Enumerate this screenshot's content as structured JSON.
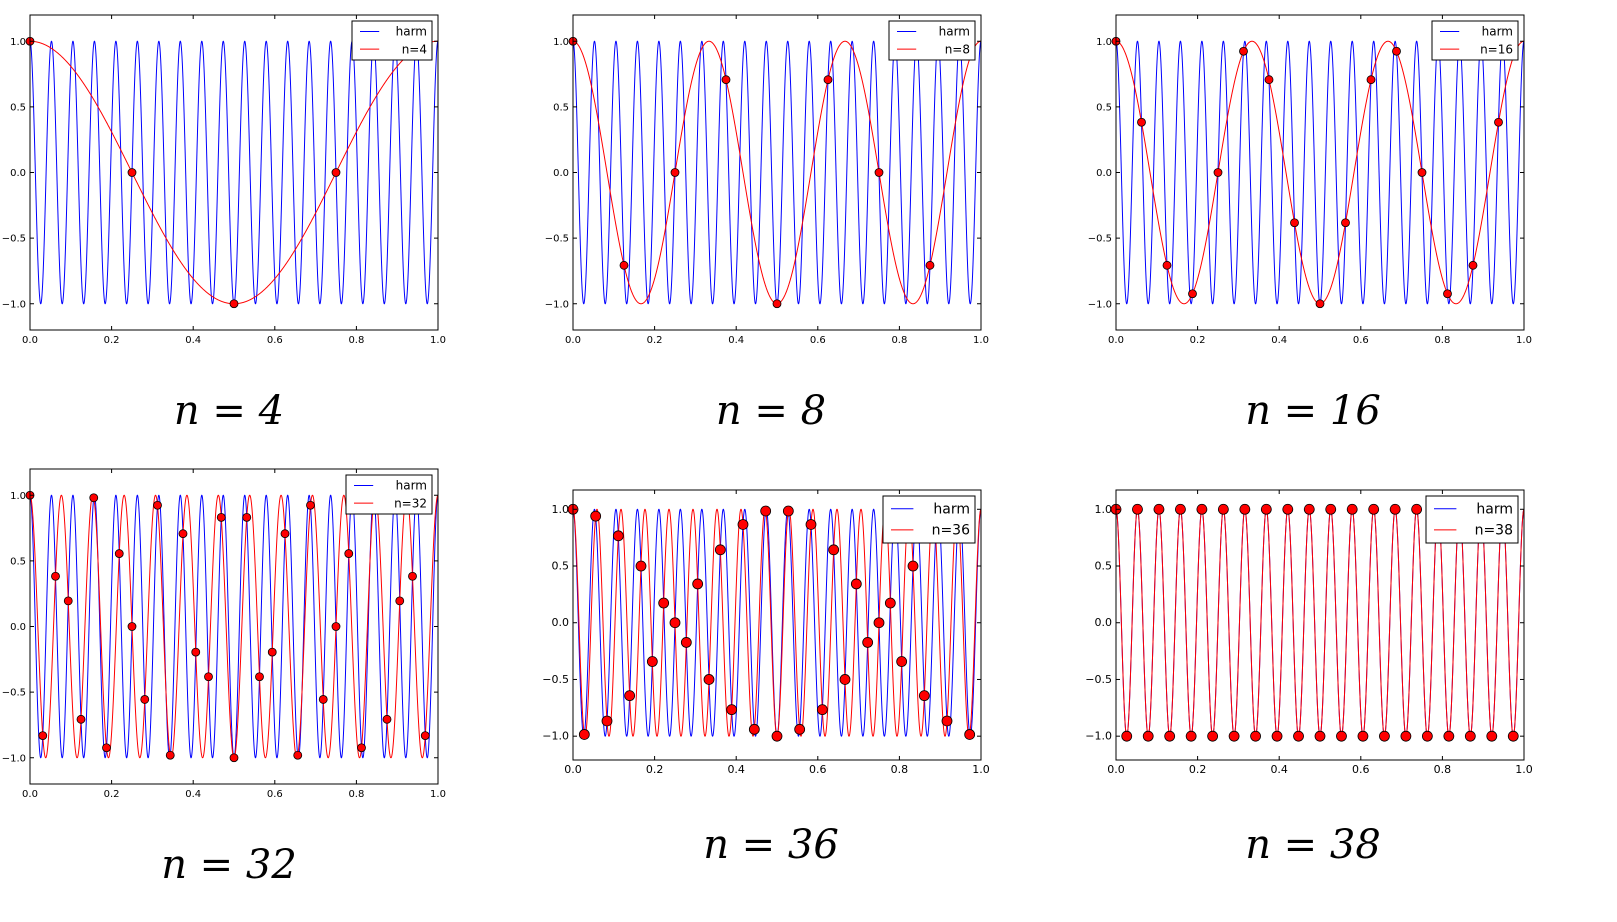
{
  "chart_data": [
    {
      "type": "line",
      "title": "n = 4",
      "xlim": [
        0,
        1
      ],
      "ylim": [
        -1.2,
        1.2
      ],
      "xticks": [
        "0.0",
        "0.2",
        "0.4",
        "0.6",
        "0.8",
        "1.0"
      ],
      "yticks": [
        "1.0",
        "0.5",
        "0.0",
        "−0.5",
        "−1.0"
      ],
      "series": [
        {
          "name": "harm",
          "function": "cos(2π·19·x)",
          "color": "#0000ff"
        },
        {
          "name": "n=4",
          "function": "cos(2π·1·x)",
          "color": "#ff0000"
        }
      ],
      "samples": {
        "n": 4,
        "x": "j/n, j=0..n-1",
        "y": "cos(2π·19·x)",
        "color": "#ff0000"
      },
      "legend": "top-right"
    },
    {
      "type": "line",
      "title": "n = 8",
      "xlim": [
        0,
        1
      ],
      "ylim": [
        -1.2,
        1.2
      ],
      "xticks": [
        "0.0",
        "0.2",
        "0.4",
        "0.6",
        "0.8",
        "1.0"
      ],
      "yticks": [
        "1.0",
        "0.5",
        "0.0",
        "−0.5",
        "−1.0"
      ],
      "series": [
        {
          "name": "harm",
          "function": "cos(2π·19·x)",
          "color": "#0000ff"
        },
        {
          "name": "n=8",
          "function": "cos(2π·3·x)",
          "color": "#ff0000"
        }
      ],
      "samples": {
        "n": 8,
        "x": "j/n, j=0..n-1",
        "y": "cos(2π·19·x)",
        "color": "#ff0000"
      },
      "legend": "top-right"
    },
    {
      "type": "line",
      "title": "n = 16",
      "xlim": [
        0,
        1
      ],
      "ylim": [
        -1.2,
        1.2
      ],
      "xticks": [
        "0.0",
        "0.2",
        "0.4",
        "0.6",
        "0.8",
        "1.0"
      ],
      "yticks": [
        "1.0",
        "0.5",
        "0.0",
        "−0.5",
        "−1.0"
      ],
      "series": [
        {
          "name": "harm",
          "function": "cos(2π·19·x)",
          "color": "#0000ff"
        },
        {
          "name": "n=16",
          "function": "cos(2π·3·x)",
          "color": "#ff0000"
        }
      ],
      "samples": {
        "n": 16,
        "x": "j/n, j=0..n-1",
        "y": "cos(2π·19·x)",
        "color": "#ff0000"
      },
      "legend": "top-right"
    },
    {
      "type": "line",
      "title": "n = 32",
      "xlim": [
        0,
        1
      ],
      "ylim": [
        -1.2,
        1.2
      ],
      "xticks": [
        "0.0",
        "0.2",
        "0.4",
        "0.6",
        "0.8",
        "1.0"
      ],
      "yticks": [
        "1.0",
        "0.5",
        "0.0",
        "−0.5",
        "−1.0"
      ],
      "series": [
        {
          "name": "harm",
          "function": "cos(2π·19·x)",
          "color": "#0000ff"
        },
        {
          "name": "n=32",
          "function": "cos(2π·13·x)",
          "color": "#ff0000"
        }
      ],
      "samples": {
        "n": 32,
        "x": "j/n, j=0..n-1",
        "y": "cos(2π·19·x)",
        "color": "#ff0000"
      },
      "legend": "top-right"
    },
    {
      "type": "line",
      "title": "n = 36",
      "xlim": [
        0,
        1
      ],
      "ylim": [
        -1.21,
        1.17
      ],
      "xticks": [
        "0.0",
        "0.2",
        "0.4",
        "0.6",
        "0.8",
        "1.0"
      ],
      "yticks": [
        "1.0",
        "0.5",
        "0.0",
        "−0.5",
        "−1.0"
      ],
      "series": [
        {
          "name": "harm",
          "function": "cos(2π·19·x)",
          "color": "#0000ff"
        },
        {
          "name": "n=36",
          "function": "cos(2π·17·x)",
          "color": "#ff0000"
        }
      ],
      "samples": {
        "n": 36,
        "x": "j/n, j=0..n-1",
        "y": "cos(2π·19·x)",
        "color": "#ff0000"
      },
      "legend": "top-right"
    },
    {
      "type": "line",
      "title": "n = 38",
      "xlim": [
        0,
        1
      ],
      "ylim": [
        -1.21,
        1.17
      ],
      "xticks": [
        "0.0",
        "0.2",
        "0.4",
        "0.6",
        "0.8",
        "1.0"
      ],
      "yticks": [
        "1.0",
        "0.5",
        "0.0",
        "−0.5",
        "−1.0"
      ],
      "series": [
        {
          "name": "harm",
          "function": "cos(2π·19·x)",
          "color": "#0000ff"
        },
        {
          "name": "n=38",
          "function": "cos(2π·19·x)",
          "color": "#ff0000"
        }
      ],
      "samples": {
        "n": 38,
        "x": "j/n, j=0..n-1",
        "y": "cos(2π·19·x)",
        "color": "#ff0000"
      },
      "legend": "top-right"
    }
  ]
}
